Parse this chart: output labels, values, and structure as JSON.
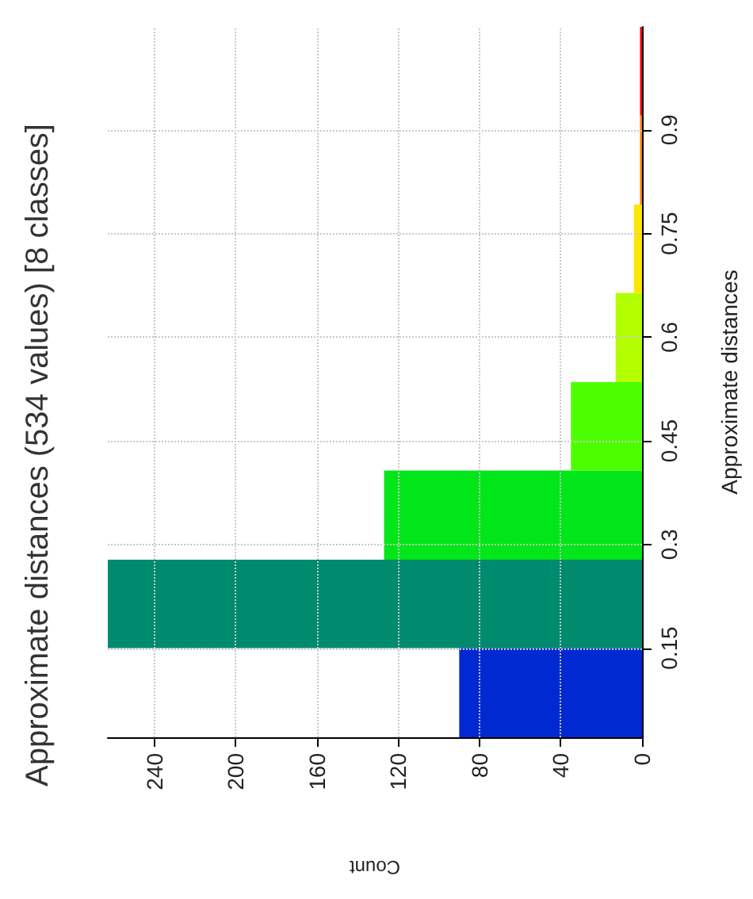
{
  "chart_data": {
    "type": "histogram",
    "orientation": "horizontal",
    "title": "Approximate distances (534 values) [8 classes]",
    "xlabel": "Count",
    "ylabel": "Approximate distances",
    "bins": [
      0.021,
      0.15,
      0.278,
      0.407,
      0.535,
      0.664,
      0.792,
      0.921,
      1.049
    ],
    "values": [
      90,
      263,
      127,
      35,
      13,
      4,
      1,
      1
    ],
    "colors": [
      "#0029d1",
      "#008a6e",
      "#00e619",
      "#4cff00",
      "#b3ff00",
      "#ffe600",
      "#ff8000",
      "#ff0000"
    ],
    "xlim": [
      263,
      0
    ],
    "xticks": [
      0,
      40,
      80,
      120,
      160,
      200,
      240
    ],
    "ylim": [
      0.021,
      1.049
    ],
    "yticks": [
      0.15,
      0.3,
      0.45,
      0.6,
      0.75,
      0.9
    ],
    "grid": true
  }
}
